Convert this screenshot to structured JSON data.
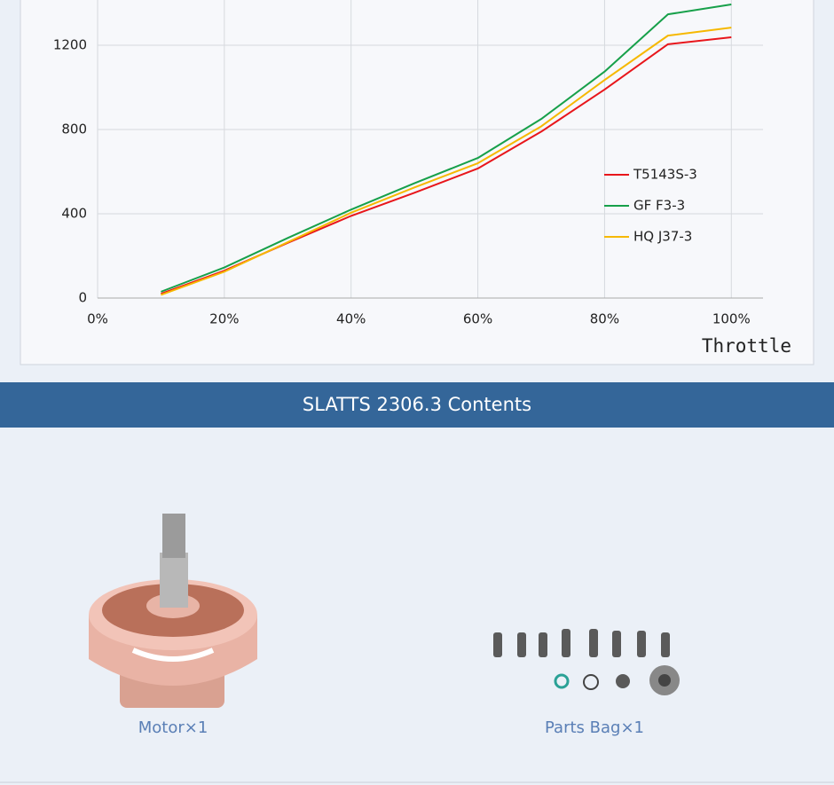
{
  "chart_data": {
    "type": "line",
    "x_label": "Throttle",
    "x": [
      10,
      20,
      30,
      40,
      50,
      60,
      70,
      80,
      90,
      100
    ],
    "series": [
      {
        "name": "T5143S-3",
        "color": "#e8161b",
        "values": [
          20,
          130,
          262,
          390,
          500,
          615,
          790,
          990,
          1205,
          1238
        ]
      },
      {
        "name": "GF F3-3",
        "color": "#17a04a",
        "values": [
          30,
          145,
          285,
          420,
          545,
          665,
          850,
          1075,
          1347,
          1394
        ]
      },
      {
        "name": "HQ J37-3",
        "color": "#f6b800",
        "values": [
          15,
          125,
          265,
          405,
          525,
          640,
          815,
          1035,
          1246,
          1284
        ]
      }
    ],
    "xlim": [
      0,
      105
    ],
    "ylim": [
      0,
      1415
    ],
    "xticks": [
      {
        "value": 0,
        "label": "0%"
      },
      {
        "value": 20,
        "label": "20%"
      },
      {
        "value": 40,
        "label": "40%"
      },
      {
        "value": 60,
        "label": "60%"
      },
      {
        "value": 80,
        "label": "80%"
      },
      {
        "value": 100,
        "label": "100%"
      }
    ],
    "yticks": [
      0,
      400,
      800,
      1200
    ],
    "grid": true
  },
  "contents": {
    "title": "SLATTS 2306.3 Contents",
    "items": [
      "Motor×1",
      "Parts Bag×1"
    ]
  }
}
